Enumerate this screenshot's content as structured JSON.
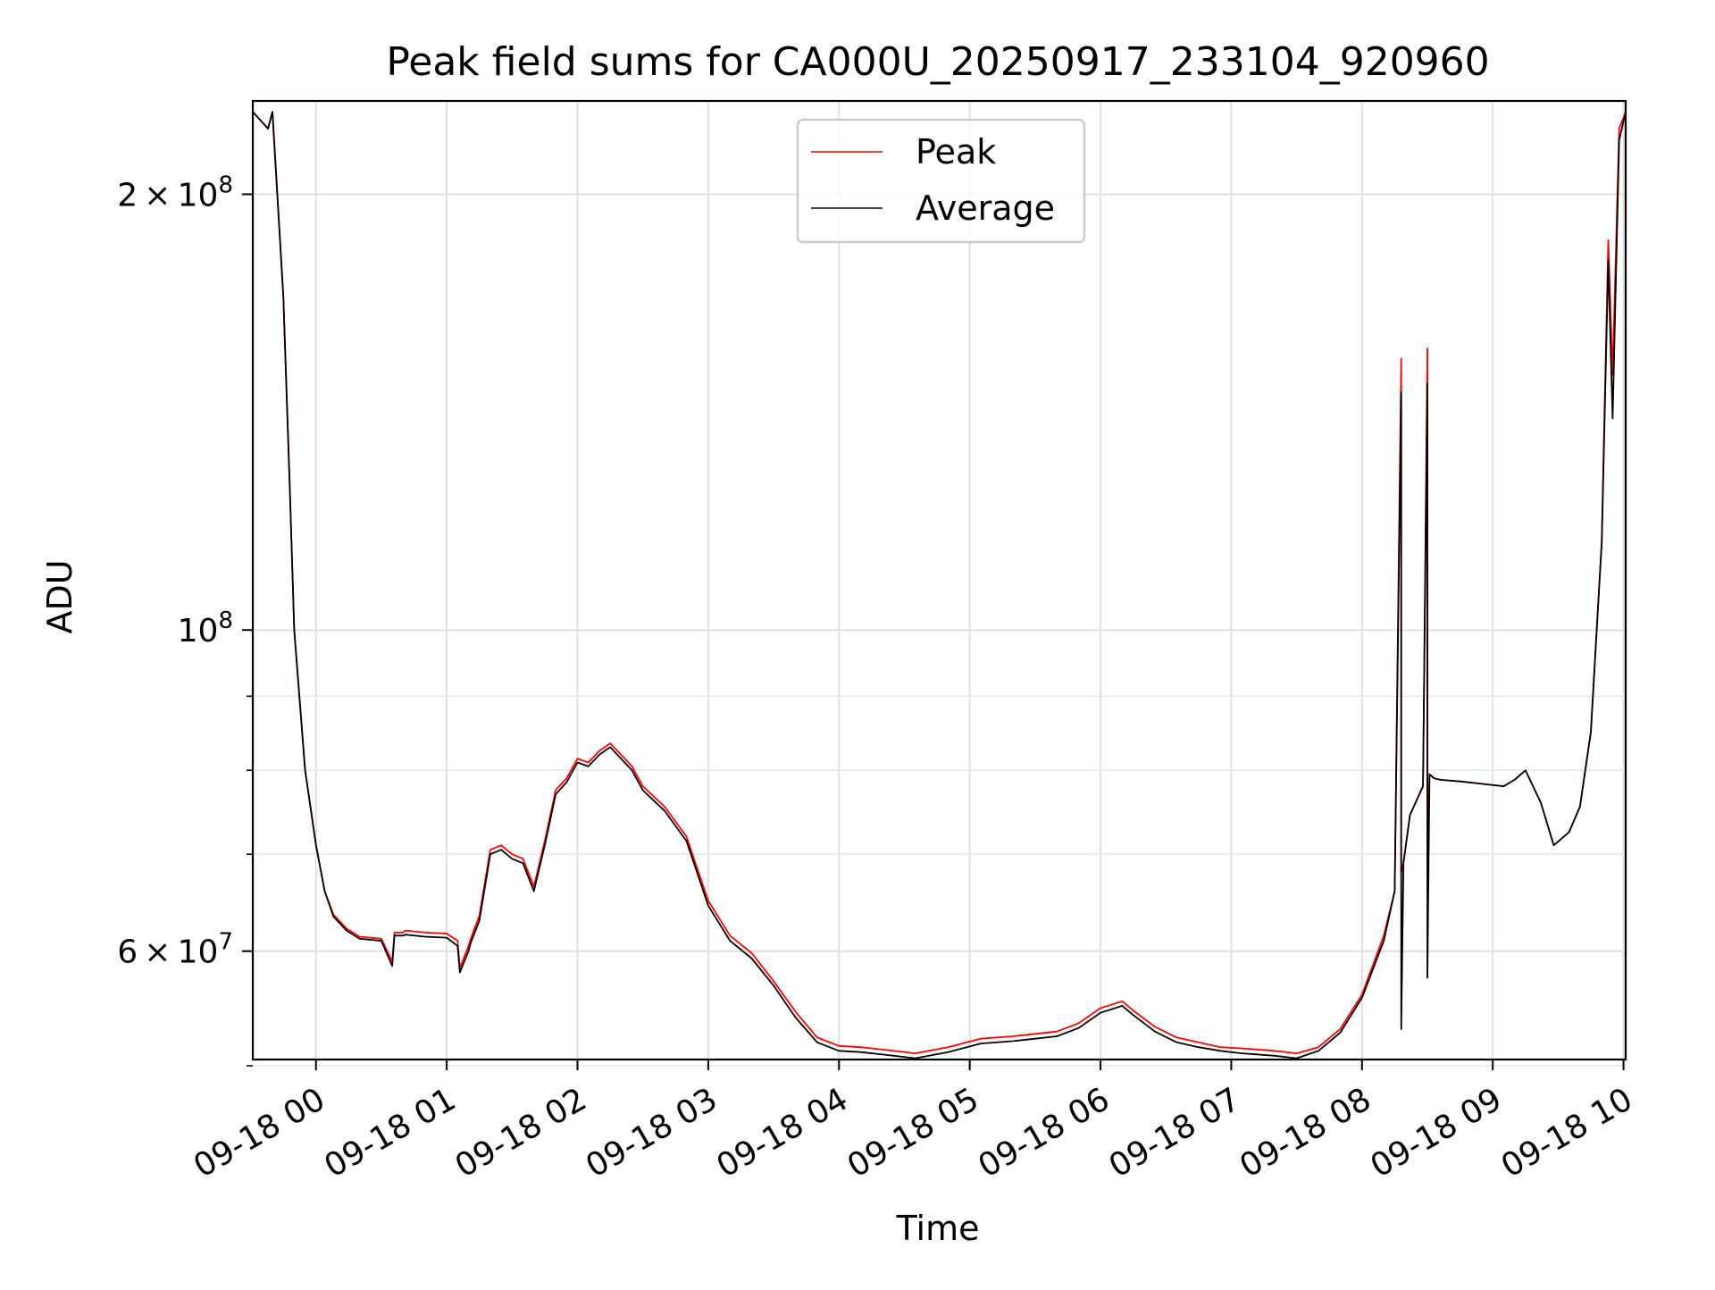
{
  "chart_data": {
    "type": "line",
    "title": "Peak field sums for CA000U_20250917_233104_920960",
    "xlabel": "Time",
    "ylabel": "ADU",
    "x_scale": "time",
    "y_scale": "log",
    "xlim": [
      "2025-09-17 23:31",
      "2025-09-18 10:01"
    ],
    "ylim": [
      50500000,
      232000000
    ],
    "x_ticks": [
      {
        "value": "2025-09-18 00:00",
        "label": "09-18 00"
      },
      {
        "value": "2025-09-18 01:00",
        "label": "09-18 01"
      },
      {
        "value": "2025-09-18 02:00",
        "label": "09-18 02"
      },
      {
        "value": "2025-09-18 03:00",
        "label": "09-18 03"
      },
      {
        "value": "2025-09-18 04:00",
        "label": "09-18 04"
      },
      {
        "value": "2025-09-18 05:00",
        "label": "09-18 05"
      },
      {
        "value": "2025-09-18 06:00",
        "label": "09-18 06"
      },
      {
        "value": "2025-09-18 07:00",
        "label": "09-18 07"
      },
      {
        "value": "2025-09-18 08:00",
        "label": "09-18 08"
      },
      {
        "value": "2025-09-18 09:00",
        "label": "09-18 09"
      },
      {
        "value": "2025-09-18 10:00",
        "label": "09-18 10"
      }
    ],
    "y_major_ticks": [
      {
        "value": 200000000,
        "mantissa": "2",
        "exp": "8"
      },
      {
        "value": 100000000,
        "mantissa": "",
        "exp": "8"
      },
      {
        "value": 60000000,
        "mantissa": "6",
        "exp": "7"
      }
    ],
    "y_minor_ticks": [
      90000000,
      80000000,
      70000000,
      50000000
    ],
    "grid": true,
    "legend": {
      "position": "upper center"
    },
    "colors": {
      "peak": "#ff0000",
      "average": "#000000"
    },
    "series": [
      {
        "name": "Peak",
        "color": "#ff0000",
        "x": [
          "2025-09-17 23:31",
          "2025-09-17 23:38",
          "2025-09-17 23:40",
          "2025-09-17 23:45",
          "2025-09-17 23:48",
          "2025-09-17 23:50",
          "2025-09-17 23:55",
          "2025-09-18 00:00",
          "2025-09-18 00:04",
          "2025-09-18 00:08",
          "2025-09-18 00:14",
          "2025-09-18 00:20",
          "2025-09-18 00:30",
          "2025-09-18 00:35",
          "2025-09-18 00:36",
          "2025-09-18 00:40",
          "2025-09-18 00:41",
          "2025-09-18 00:50",
          "2025-09-18 01:00",
          "2025-09-18 01:05",
          "2025-09-18 01:06",
          "2025-09-18 01:10",
          "2025-09-18 01:11",
          "2025-09-18 01:15",
          "2025-09-18 01:20",
          "2025-09-18 01:25",
          "2025-09-18 01:30",
          "2025-09-18 01:35",
          "2025-09-18 01:40",
          "2025-09-18 01:45",
          "2025-09-18 01:50",
          "2025-09-18 01:55",
          "2025-09-18 02:00",
          "2025-09-18 02:05",
          "2025-09-18 02:10",
          "2025-09-18 02:15",
          "2025-09-18 02:20",
          "2025-09-18 02:25",
          "2025-09-18 02:30",
          "2025-09-18 02:40",
          "2025-09-18 02:50",
          "2025-09-18 03:00",
          "2025-09-18 03:10",
          "2025-09-18 03:20",
          "2025-09-18 03:30",
          "2025-09-18 03:40",
          "2025-09-18 03:50",
          "2025-09-18 04:00",
          "2025-09-18 04:10",
          "2025-09-18 04:20",
          "2025-09-18 04:35",
          "2025-09-18 04:50",
          "2025-09-18 05:05",
          "2025-09-18 05:20",
          "2025-09-18 05:30",
          "2025-09-18 05:40",
          "2025-09-18 05:50",
          "2025-09-18 06:00",
          "2025-09-18 06:10",
          "2025-09-18 06:15",
          "2025-09-18 06:25",
          "2025-09-18 06:35",
          "2025-09-18 06:45",
          "2025-09-18 06:55",
          "2025-09-18 07:05",
          "2025-09-18 07:20",
          "2025-09-18 07:30",
          "2025-09-18 07:40",
          "2025-09-18 07:50",
          "2025-09-18 08:00",
          "2025-09-18 08:10",
          "2025-09-18 08:15",
          "2025-09-18 08:18",
          "2025-09-18 08:18",
          "2025-09-18 08:19",
          "2025-09-18 08:22",
          "2025-09-18 08:28",
          "2025-09-18 08:30",
          "2025-09-18 08:30",
          "2025-09-18 08:31",
          "2025-09-18 08:33",
          "2025-09-18 08:36",
          "2025-09-18 08:45",
          "2025-09-18 08:55",
          "2025-09-18 09:05",
          "2025-09-18 09:10",
          "2025-09-18 09:15",
          "2025-09-18 09:22",
          "2025-09-18 09:28",
          "2025-09-18 09:35",
          "2025-09-18 09:40",
          "2025-09-18 09:45",
          "2025-09-18 09:50",
          "2025-09-18 09:53",
          "2025-09-18 09:55",
          "2025-09-18 09:58",
          "2025-09-18 10:01"
        ],
        "y": [
          228000000,
          222000000,
          228000000,
          170000000,
          125000000,
          100000000,
          80000000,
          71000000,
          66000000,
          63600000,
          62200000,
          61400000,
          61200000,
          59000000,
          61800000,
          61800000,
          62000000,
          61800000,
          61700000,
          61000000,
          58400000,
          60500000,
          61200000,
          63500000,
          70500000,
          71000000,
          70000000,
          69500000,
          66500000,
          71500000,
          77500000,
          79000000,
          81500000,
          81000000,
          82500000,
          83500000,
          82000000,
          80500000,
          78000000,
          75500000,
          72000000,
          65000000,
          61500000,
          59800000,
          57200000,
          54500000,
          52300000,
          51600000,
          51500000,
          51300000,
          51000000,
          51500000,
          52200000,
          52400000,
          52600000,
          52800000,
          53500000,
          54800000,
          55400000,
          54600000,
          53200000,
          52300000,
          51900000,
          51500000,
          51400000,
          51200000,
          51000000,
          51500000,
          53000000,
          56000000,
          61500000,
          66000000,
          154000000,
          68000000,
          69000000,
          74500000,
          78000000,
          156500000,
          68000000,
          79500000,
          79000000,
          78800000,
          78600000,
          78300000,
          78000000,
          78800000,
          80000000,
          76000000,
          71000000,
          72500000,
          75500000,
          85000000,
          115000000,
          186000000,
          150000000,
          222000000,
          228000000
        ]
      },
      {
        "name": "Average",
        "color": "#000000",
        "x": [
          "2025-09-17 23:31",
          "2025-09-17 23:38",
          "2025-09-17 23:40",
          "2025-09-17 23:45",
          "2025-09-17 23:48",
          "2025-09-17 23:50",
          "2025-09-17 23:55",
          "2025-09-18 00:00",
          "2025-09-18 00:04",
          "2025-09-18 00:08",
          "2025-09-18 00:14",
          "2025-09-18 00:20",
          "2025-09-18 00:30",
          "2025-09-18 00:35",
          "2025-09-18 00:36",
          "2025-09-18 00:40",
          "2025-09-18 00:41",
          "2025-09-18 00:50",
          "2025-09-18 01:00",
          "2025-09-18 01:05",
          "2025-09-18 01:06",
          "2025-09-18 01:10",
          "2025-09-18 01:11",
          "2025-09-18 01:15",
          "2025-09-18 01:20",
          "2025-09-18 01:25",
          "2025-09-18 01:30",
          "2025-09-18 01:35",
          "2025-09-18 01:40",
          "2025-09-18 01:45",
          "2025-09-18 01:50",
          "2025-09-18 01:55",
          "2025-09-18 02:00",
          "2025-09-18 02:05",
          "2025-09-18 02:10",
          "2025-09-18 02:15",
          "2025-09-18 02:20",
          "2025-09-18 02:25",
          "2025-09-18 02:30",
          "2025-09-18 02:40",
          "2025-09-18 02:50",
          "2025-09-18 03:00",
          "2025-09-18 03:10",
          "2025-09-18 03:20",
          "2025-09-18 03:30",
          "2025-09-18 03:40",
          "2025-09-18 03:50",
          "2025-09-18 04:00",
          "2025-09-18 04:10",
          "2025-09-18 04:20",
          "2025-09-18 04:35",
          "2025-09-18 04:50",
          "2025-09-18 05:05",
          "2025-09-18 05:20",
          "2025-09-18 05:30",
          "2025-09-18 05:40",
          "2025-09-18 05:50",
          "2025-09-18 06:00",
          "2025-09-18 06:10",
          "2025-09-18 06:15",
          "2025-09-18 06:25",
          "2025-09-18 06:35",
          "2025-09-18 06:45",
          "2025-09-18 06:55",
          "2025-09-18 07:05",
          "2025-09-18 07:20",
          "2025-09-18 07:30",
          "2025-09-18 07:40",
          "2025-09-18 07:50",
          "2025-09-18 08:00",
          "2025-09-18 08:10",
          "2025-09-18 08:15",
          "2025-09-18 08:18",
          "2025-09-18 08:18",
          "2025-09-18 08:19",
          "2025-09-18 08:22",
          "2025-09-18 08:28",
          "2025-09-18 08:30",
          "2025-09-18 08:30",
          "2025-09-18 08:31",
          "2025-09-18 08:33",
          "2025-09-18 08:36",
          "2025-09-18 08:45",
          "2025-09-18 08:55",
          "2025-09-18 09:05",
          "2025-09-18 09:10",
          "2025-09-18 09:15",
          "2025-09-18 09:22",
          "2025-09-18 09:28",
          "2025-09-18 09:35",
          "2025-09-18 09:40",
          "2025-09-18 09:45",
          "2025-09-18 09:50",
          "2025-09-18 09:53",
          "2025-09-18 09:55",
          "2025-09-18 09:58",
          "2025-09-18 10:01"
        ],
        "y": [
          228000000,
          222000000,
          228000000,
          170000000,
          125000000,
          100000000,
          80000000,
          71000000,
          66000000,
          63400000,
          62000000,
          61200000,
          61000000,
          58600000,
          61500000,
          61500000,
          61600000,
          61400000,
          61300000,
          60500000,
          58000000,
          60000000,
          60800000,
          63000000,
          70000000,
          70500000,
          69500000,
          69000000,
          66000000,
          71000000,
          77000000,
          78500000,
          81000000,
          80500000,
          82000000,
          83000000,
          81500000,
          80000000,
          77500000,
          75000000,
          71500000,
          64500000,
          61000000,
          59300000,
          56800000,
          54000000,
          51900000,
          51200000,
          51100000,
          50900000,
          50600000,
          51100000,
          51800000,
          52000000,
          52200000,
          52400000,
          53100000,
          54400000,
          55000000,
          54200000,
          52800000,
          51900000,
          51500000,
          51200000,
          51000000,
          50800000,
          50600000,
          51200000,
          52700000,
          55700000,
          61000000,
          66000000,
          146000000,
          53000000,
          69000000,
          74500000,
          78000000,
          148000000,
          57500000,
          79500000,
          79000000,
          78800000,
          78600000,
          78300000,
          78000000,
          78800000,
          80000000,
          76000000,
          71000000,
          72500000,
          75500000,
          85000000,
          115000000,
          180000000,
          140000000,
          218000000,
          228000000
        ]
      }
    ]
  }
}
